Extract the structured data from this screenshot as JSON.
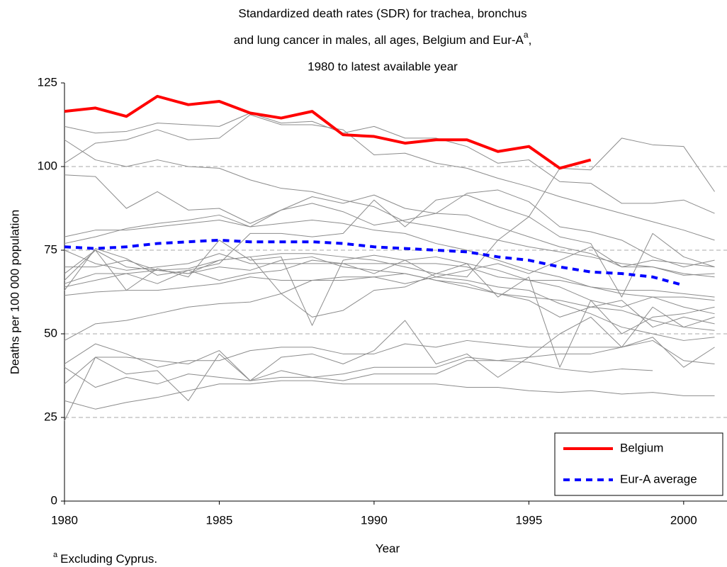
{
  "chart_data": {
    "type": "line",
    "title": [
      "Standardized death rates (SDR) for trachea, bronchus",
      "and lung cancer in males, all ages, Belgium and Eur-A",
      "1980 to latest available year"
    ],
    "title_superscript": "a",
    "title_superscript_suffix": ",",
    "x_label": "Year",
    "y_label": "Deaths per 100 000 population",
    "footnote": {
      "marker": "a",
      "text": "Excluding Cyprus."
    },
    "x": [
      1980,
      1981,
      1982,
      1983,
      1984,
      1985,
      1986,
      1987,
      1988,
      1989,
      1990,
      1991,
      1992,
      1993,
      1994,
      1995,
      1996,
      1997,
      1998,
      1999,
      2000,
      2001
    ],
    "xlim": [
      1980,
      2001.4
    ],
    "xticks": [
      1980,
      1985,
      1990,
      1995,
      2000
    ],
    "ylim": [
      0,
      125
    ],
    "yticks": [
      0,
      25,
      50,
      75,
      100,
      125
    ],
    "grid": true,
    "legend": "lower right",
    "series": [
      {
        "color": "#8c8c8c",
        "values": [
          112,
          110,
          110.5,
          113,
          112.5,
          112,
          116,
          113,
          113.5,
          110,
          112,
          108.5,
          108.5,
          106,
          101,
          102,
          95.5,
          95,
          89,
          89,
          90,
          86
        ]
      },
      {
        "color": "#8c8c8c",
        "values": [
          101,
          107,
          108,
          111,
          108,
          108.5,
          115.5,
          112.5,
          112.5,
          111,
          103.5,
          104,
          101,
          99.5,
          96.5,
          94,
          91,
          88.5,
          86,
          83.5,
          81,
          78
        ]
      },
      {
        "color": "#8c8c8c",
        "values": [
          97.5,
          97,
          87.5,
          92.5,
          87,
          87.5,
          83,
          87,
          91,
          89,
          91.5,
          87.5,
          86,
          85.5,
          82,
          79,
          76,
          74,
          70,
          70,
          67.5,
          68
        ]
      },
      {
        "color": "#8c8c8c",
        "values": [
          108,
          102,
          100,
          102,
          100,
          99.5,
          96,
          93.5,
          92.5,
          90,
          88,
          83.5,
          82,
          80,
          78,
          76,
          74.5,
          73,
          71,
          70,
          68,
          67
        ]
      },
      {
        "color": "#8c8c8c",
        "values": [
          66,
          75,
          63,
          69.5,
          67,
          78,
          72,
          73,
          52.5,
          72,
          73.5,
          72,
          73,
          71,
          69,
          66,
          64,
          60,
          58,
          61,
          58,
          56
        ]
      },
      {
        "color": "#8c8c8c",
        "values": [
          63,
          75.5,
          72.5,
          67.5,
          69,
          66,
          68,
          69,
          72,
          71,
          68,
          72,
          67,
          69,
          71,
          68,
          72,
          76,
          70,
          72,
          71,
          70
        ]
      },
      {
        "color": "#8c8c8c",
        "values": [
          70,
          70,
          72,
          69,
          68,
          70,
          69,
          72,
          73,
          70,
          69,
          68,
          66,
          65,
          62,
          61,
          60,
          58,
          57,
          54,
          52,
          51
        ]
      },
      {
        "color": "#8c8c8c",
        "values": [
          75,
          71,
          69,
          70,
          71,
          74,
          71,
          71,
          71,
          71,
          71,
          71,
          71,
          70,
          67,
          66,
          66,
          64,
          63,
          63,
          62,
          61
        ]
      },
      {
        "color": "#8c8c8c",
        "values": [
          79,
          81,
          81,
          82,
          83,
          84,
          82,
          83,
          84,
          83,
          81,
          80,
          77,
          75,
          72,
          69,
          67,
          64,
          62,
          61,
          61,
          60
        ]
      },
      {
        "color": "#8c8c8c",
        "values": [
          77,
          79,
          81.5,
          83,
          84,
          85.5,
          82,
          87,
          89,
          86.5,
          82.5,
          84,
          86,
          92,
          93,
          89.5,
          82,
          80.5,
          78,
          73,
          70,
          72
        ]
      },
      {
        "color": "#8c8c8c",
        "values": [
          64,
          66,
          68,
          69,
          69.5,
          72,
          73,
          74,
          74,
          73,
          72,
          70,
          68,
          67,
          78,
          85,
          99.5,
          99,
          108.5,
          106.5,
          106,
          92.5
        ]
      },
      {
        "color": "#8c8c8c",
        "values": [
          61.5,
          62.5,
          63,
          63,
          64,
          65,
          67,
          66,
          66,
          67,
          67,
          68,
          66,
          64,
          62,
          60,
          55,
          58,
          60,
          52,
          55,
          53
        ]
      },
      {
        "color": "#8c8c8c",
        "values": [
          48,
          53,
          54,
          56,
          58,
          59,
          59.5,
          62,
          66,
          66,
          67,
          65,
          67,
          66,
          64,
          63,
          59,
          56,
          52,
          50,
          48,
          49
        ]
      },
      {
        "color": "#8c8c8c",
        "values": [
          41,
          47,
          44,
          40,
          42,
          42,
          45,
          46,
          46,
          44,
          44,
          47,
          46,
          48,
          47,
          46,
          46,
          46,
          46,
          48,
          42,
          41
        ]
      },
      {
        "color": "#8c8c8c",
        "values": [
          35,
          43,
          43,
          42,
          41,
          45,
          36,
          43,
          44,
          41,
          45,
          54,
          41,
          44,
          37,
          43,
          50,
          55,
          46,
          58,
          52,
          55
        ]
      },
      {
        "color": "#8c8c8c",
        "values": [
          40,
          34,
          37,
          35,
          38,
          37,
          36,
          39,
          37,
          36,
          38,
          38,
          38,
          42,
          42,
          41.5,
          39.5,
          38.5,
          39.5,
          39,
          null,
          null
        ]
      },
      {
        "color": "#8c8c8c",
        "values": [
          30,
          27.5,
          29.5,
          31,
          33,
          35,
          35,
          36,
          36,
          35,
          35,
          35,
          35,
          34,
          34,
          33,
          32.5,
          33,
          32,
          32.5,
          31.5,
          31.5
        ]
      },
      {
        "color": "#8c8c8c",
        "values": [
          24,
          43,
          38,
          39,
          30,
          44,
          36,
          37,
          37,
          38,
          40,
          40,
          40,
          43,
          42,
          43,
          44,
          44,
          46,
          49,
          40,
          46
        ]
      },
      {
        "color": "#8c8c8c",
        "values": [
          68,
          75,
          70,
          69,
          68,
          72,
          73,
          62,
          55,
          57,
          63,
          64,
          68,
          71,
          61,
          67,
          40,
          60,
          50,
          55,
          56,
          58
        ]
      },
      {
        "color": "#8c8c8c",
        "values": [
          65,
          68,
          68,
          65,
          69,
          71,
          80,
          80,
          79,
          80,
          90,
          82,
          90,
          91.5,
          88,
          85,
          79,
          77,
          61,
          80,
          73,
          70
        ]
      },
      {
        "name": "Belgium",
        "color": "#ff0000",
        "values": [
          116.5,
          117.5,
          115,
          121,
          118.5,
          119.5,
          116,
          114.5,
          116.5,
          109.5,
          109,
          107,
          108,
          108,
          104.5,
          106,
          99.5,
          102,
          null,
          null,
          null,
          null
        ]
      },
      {
        "name": "Eur-A average",
        "color": "#0000ff",
        "dashed": true,
        "values": [
          76,
          75.5,
          76,
          77,
          77.5,
          78,
          77.5,
          77.5,
          77.5,
          77,
          76,
          75.5,
          75,
          74.5,
          73,
          72,
          70,
          68.5,
          68,
          67,
          64.5,
          null
        ]
      }
    ]
  }
}
